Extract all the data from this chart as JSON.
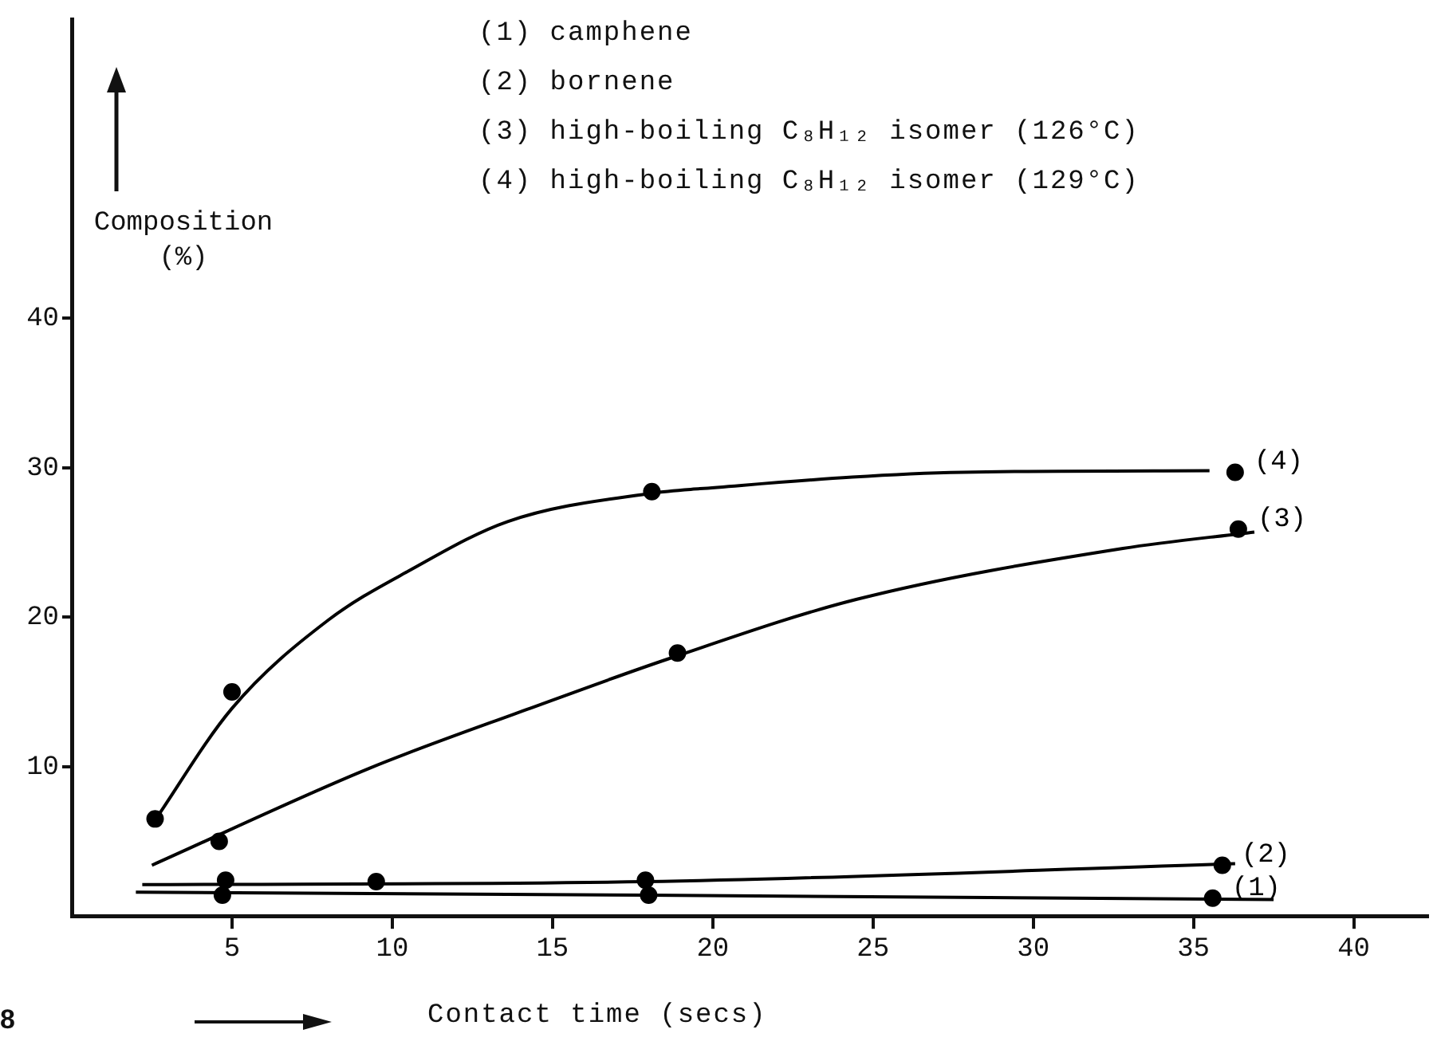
{
  "chart_data": {
    "type": "scatter",
    "xlabel": "Contact time (secs)",
    "ylabel": "Composition (%)",
    "xlim": [
      0,
      42.3
    ],
    "xticks": [
      5,
      10,
      15,
      20,
      25,
      30,
      35,
      40
    ],
    "ylim": [
      0,
      60
    ],
    "yticks": [
      10,
      20,
      30,
      40
    ],
    "grid": false,
    "legend": false,
    "marker": "circle",
    "annotations": [
      "(1) camphene",
      "(2) bornene",
      "(3) high-boiling C₈H₁₂ isomer (126°C)",
      "(4) high-boiling C₈H₁₂ isomer (129°C)",
      "8"
    ],
    "series": [
      {
        "name": "(1)",
        "color": "#000000",
        "x": [
          4.7,
          18.0,
          35.6
        ],
        "values": [
          1.4,
          1.4,
          1.2
        ]
      },
      {
        "name": "(2)",
        "color": "#000000",
        "x": [
          4.8,
          9.5,
          17.9,
          35.9
        ],
        "values": [
          2.4,
          2.3,
          2.4,
          3.4
        ]
      },
      {
        "name": "(3)",
        "color": "#000000",
        "x": [
          4.6,
          18.9,
          36.4
        ],
        "values": [
          5.0,
          17.6,
          25.9
        ]
      },
      {
        "name": "(4)",
        "color": "#000000",
        "x": [
          2.6,
          5.0,
          18.1,
          36.3
        ],
        "values": [
          6.5,
          15.0,
          28.4,
          29.7
        ]
      },
      {
        "type": "line",
        "marker": "none",
        "color": "#000000",
        "x": [
          2.0,
          18.0,
          37.5
        ],
        "values": [
          1.6,
          1.4,
          1.1
        ]
      },
      {
        "type": "line",
        "marker": "none",
        "color": "#000000",
        "x": [
          2.2,
          17.9,
          36.3
        ],
        "values": [
          2.1,
          2.3,
          3.5
        ]
      },
      {
        "type": "line",
        "marker": "none",
        "color": "#000000",
        "x": [
          2.5,
          9.3,
          14.3,
          18.6,
          24.5,
          32.8,
          36.9
        ],
        "values": [
          3.4,
          9.9,
          13.9,
          17.2,
          21.2,
          24.6,
          25.7
        ]
      },
      {
        "type": "line",
        "marker": "none",
        "color": "#000000",
        "x": [
          2.5,
          5.0,
          8.0,
          10.6,
          13.6,
          18.1,
          19.6,
          27.8,
          35.5
        ],
        "values": [
          6.1,
          13.9,
          19.8,
          23.2,
          26.4,
          28.3,
          28.6,
          29.7,
          29.8
        ]
      }
    ]
  }
}
